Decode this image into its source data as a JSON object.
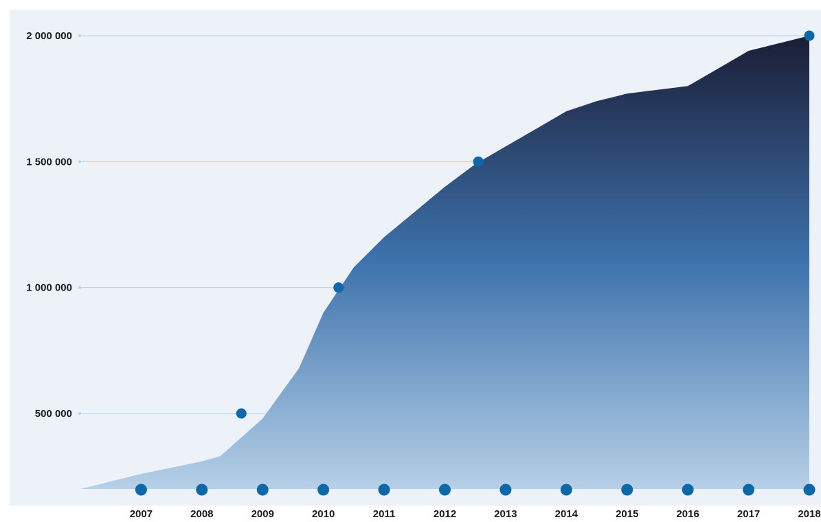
{
  "chart_data": {
    "type": "area",
    "title": "",
    "xlabel": "",
    "ylabel": "",
    "ylim": [
      200000,
      2000000
    ],
    "y_ticks": [
      {
        "value": 500000,
        "label": "500 000"
      },
      {
        "value": 1000000,
        "label": "1 000 000"
      },
      {
        "value": 1500000,
        "label": "1 500 000"
      },
      {
        "value": 2000000,
        "label": "2 000 000"
      }
    ],
    "x_ticks": [
      "2007",
      "2008",
      "2009",
      "2010",
      "2011",
      "2012",
      "2013",
      "2014",
      "2015",
      "2016",
      "2017",
      "2018"
    ],
    "x": [
      2006,
      2007,
      2008,
      2008.3,
      2009,
      2009.6,
      2010,
      2010.5,
      2011,
      2011.5,
      2012,
      2012.5,
      2013,
      2013.5,
      2014,
      2014.5,
      2015,
      2015.5,
      2016,
      2016.5,
      2017,
      2017.5,
      2018
    ],
    "values": [
      200000,
      260000,
      310000,
      330000,
      480000,
      680000,
      900000,
      1080000,
      1200000,
      1300000,
      1400000,
      1490000,
      1560000,
      1630000,
      1700000,
      1740000,
      1770000,
      1785000,
      1800000,
      1870000,
      1940000,
      1970000,
      2000000
    ],
    "milestones": [
      {
        "year": 2008.65,
        "value": 500000
      },
      {
        "year": 2010.25,
        "value": 1000000
      },
      {
        "year": 2012.55,
        "value": 1500000
      },
      {
        "year": 2018,
        "value": 2000000
      }
    ],
    "grid": true,
    "legend": "none",
    "colors": {
      "background": "#edf2f9",
      "area_top": "#1b1d36",
      "area_mid": "#3e73ad",
      "area_bottom": "#b6d0e7",
      "marker": "#0e67a9",
      "gridline": "#b5d2ec"
    }
  }
}
